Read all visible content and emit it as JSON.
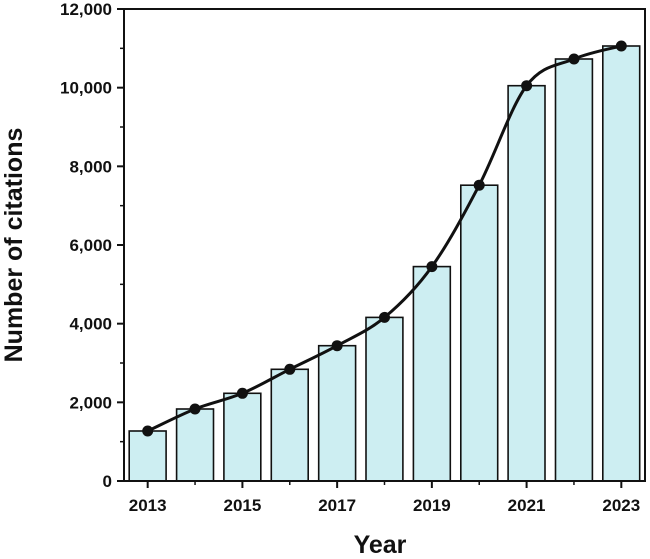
{
  "chart_data": {
    "type": "bar",
    "title": "",
    "xlabel": "Year",
    "ylabel": "Number of citations",
    "categories": [
      "2013",
      "2014",
      "2015",
      "2016",
      "2017",
      "2018",
      "2019",
      "2020",
      "2021",
      "2022",
      "2023"
    ],
    "values": [
      1270,
      1830,
      2230,
      2840,
      3440,
      4160,
      5450,
      7520,
      10050,
      10730,
      11060
    ],
    "ylim": [
      0,
      12000
    ],
    "yticks": [
      0,
      2000,
      4000,
      6000,
      8000,
      10000,
      12000
    ],
    "ytick_labels": [
      "0",
      "2,000",
      "4,000",
      "6,000",
      "8,000",
      "10,000",
      "12,000"
    ],
    "xtick_labels": [
      "2013",
      "2015",
      "2017",
      "2019",
      "2021",
      "2023"
    ],
    "overlay": "smooth line with markers through bar tops",
    "grid": false,
    "colors": {
      "bar_fill": "#cdeef2",
      "bar_stroke": "#111111",
      "line": "#111111"
    }
  }
}
